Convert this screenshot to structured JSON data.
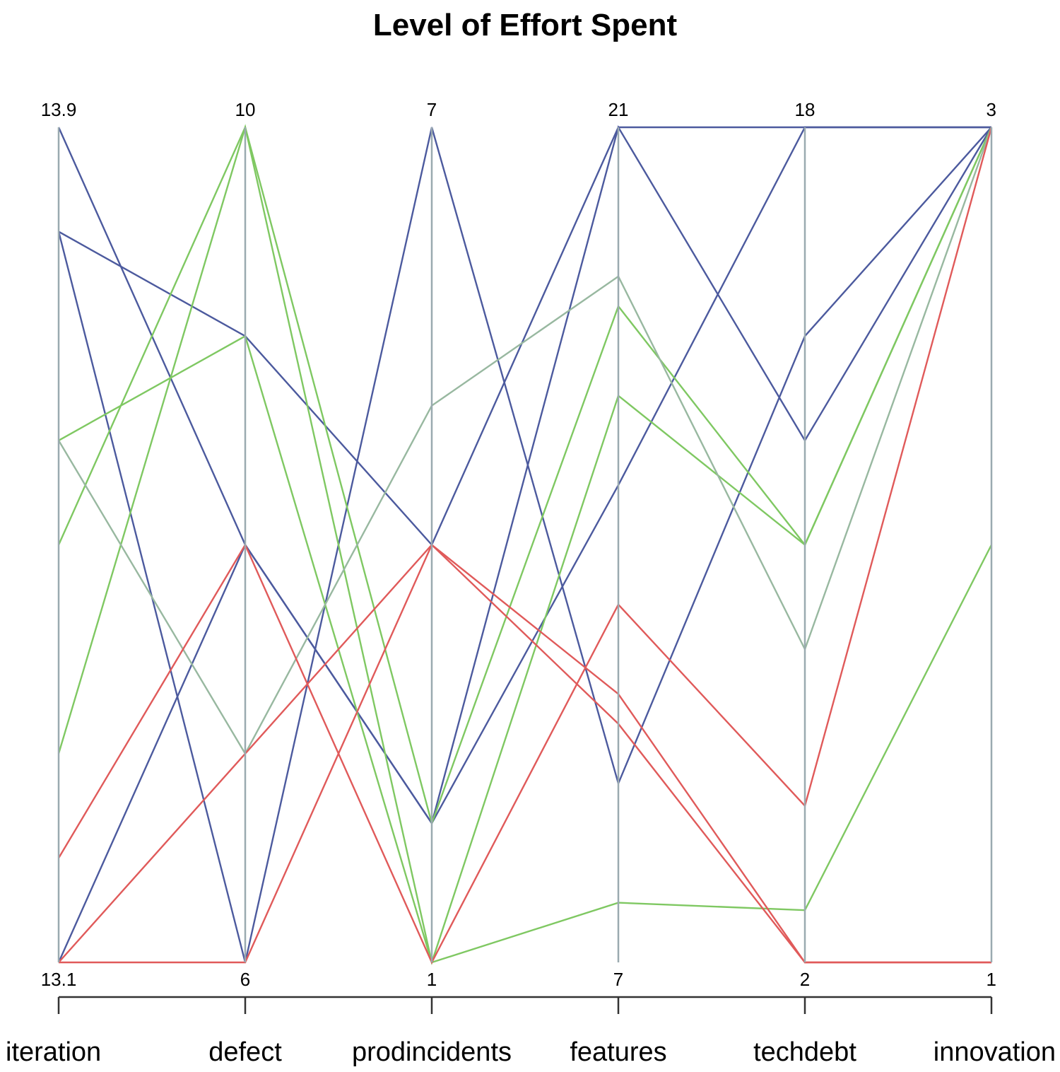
{
  "chart_data": {
    "type": "parallel_coordinates",
    "title": "Level of Effort Spent",
    "axes": [
      {
        "name": "iteration",
        "min": "13.1",
        "max": "13.9"
      },
      {
        "name": "defect",
        "min": "6",
        "max": "10"
      },
      {
        "name": "prodincidents",
        "min": "1",
        "max": "7"
      },
      {
        "name": "features",
        "min": "7",
        "max": "21"
      },
      {
        "name": "techdebt",
        "min": "2",
        "max": "18"
      },
      {
        "name": "innovation",
        "min": "1",
        "max": "3"
      }
    ],
    "grid": false,
    "legend": "none",
    "colors": {
      "axis_line": "#9aaab0",
      "blue": "#4c5a9e",
      "green": "#7fc862",
      "sage": "#98b8a0",
      "red": "#e05a5a",
      "baseline": "#333333"
    },
    "series": [
      {
        "color": "blue",
        "values": [
          13.9,
          8,
          2,
          21,
          12,
          3
        ]
      },
      {
        "color": "blue",
        "values": [
          13.8,
          9,
          4,
          21,
          18,
          3
        ]
      },
      {
        "color": "blue",
        "values": [
          13.8,
          6,
          7,
          10,
          14,
          3
        ]
      },
      {
        "color": "blue",
        "values": [
          13.1,
          8,
          2,
          15,
          18,
          3
        ]
      },
      {
        "color": "green",
        "values": [
          13.5,
          10,
          2,
          18,
          10,
          3
        ]
      },
      {
        "color": "green",
        "values": [
          13.3,
          10,
          1,
          8,
          3,
          2
        ]
      },
      {
        "color": "green",
        "values": [
          13.6,
          9,
          1,
          16.5,
          10,
          3
        ]
      },
      {
        "color": "sage",
        "values": [
          13.6,
          7,
          5,
          18.5,
          8,
          3
        ]
      },
      {
        "color": "red",
        "values": [
          13.2,
          8,
          1,
          13,
          5,
          3
        ]
      },
      {
        "color": "red",
        "values": [
          13.1,
          7,
          4,
          11,
          2,
          1
        ]
      },
      {
        "color": "red",
        "values": [
          13.1,
          6,
          4,
          11.5,
          2,
          1
        ]
      }
    ]
  }
}
